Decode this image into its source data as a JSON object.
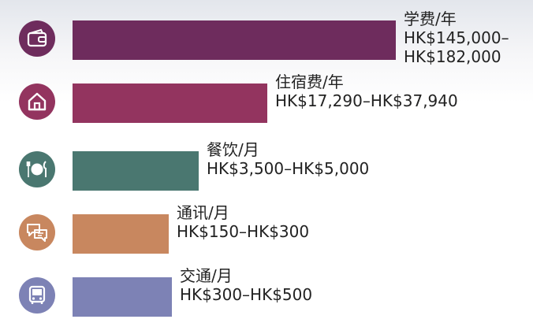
{
  "chart_data": {
    "type": "bar",
    "orientation": "horizontal",
    "categories": [
      {
        "name": "学费/年",
        "range": "HK$145,000–HK$182,000",
        "range_lines": [
          "HK$145,000–",
          "HK$182,000"
        ],
        "value": 182000,
        "color": "#6e2c5d",
        "icon": "wallet-icon"
      },
      {
        "name": "住宿费/年",
        "range": "HK$17,290–HK$37,940",
        "range_lines": [
          "HK$17,290–HK$37,940"
        ],
        "value": 37940,
        "color": "#93345f",
        "icon": "house-icon"
      },
      {
        "name": "餐饮/月",
        "range": "HK$3,500–HK$5,000",
        "range_lines": [
          "HK$3,500–HK$5,000"
        ],
        "value": 5000,
        "color": "#4a7770",
        "icon": "plate-cutlery-icon"
      },
      {
        "name": "通讯/月",
        "range": "HK$150–HK$300",
        "range_lines": [
          "HK$150–HK$300"
        ],
        "value": 300,
        "color": "#c8875f",
        "icon": "chat-bubbles-icon"
      },
      {
        "name": "交通/月",
        "range": "HK$300–HK$500",
        "range_lines": [
          "HK$300–HK$500"
        ],
        "value": 500,
        "color": "#7d82b5",
        "icon": "bus-icon"
      }
    ],
    "title": "",
    "xlabel": "",
    "ylabel": "",
    "grid": false,
    "legend": "none"
  }
}
